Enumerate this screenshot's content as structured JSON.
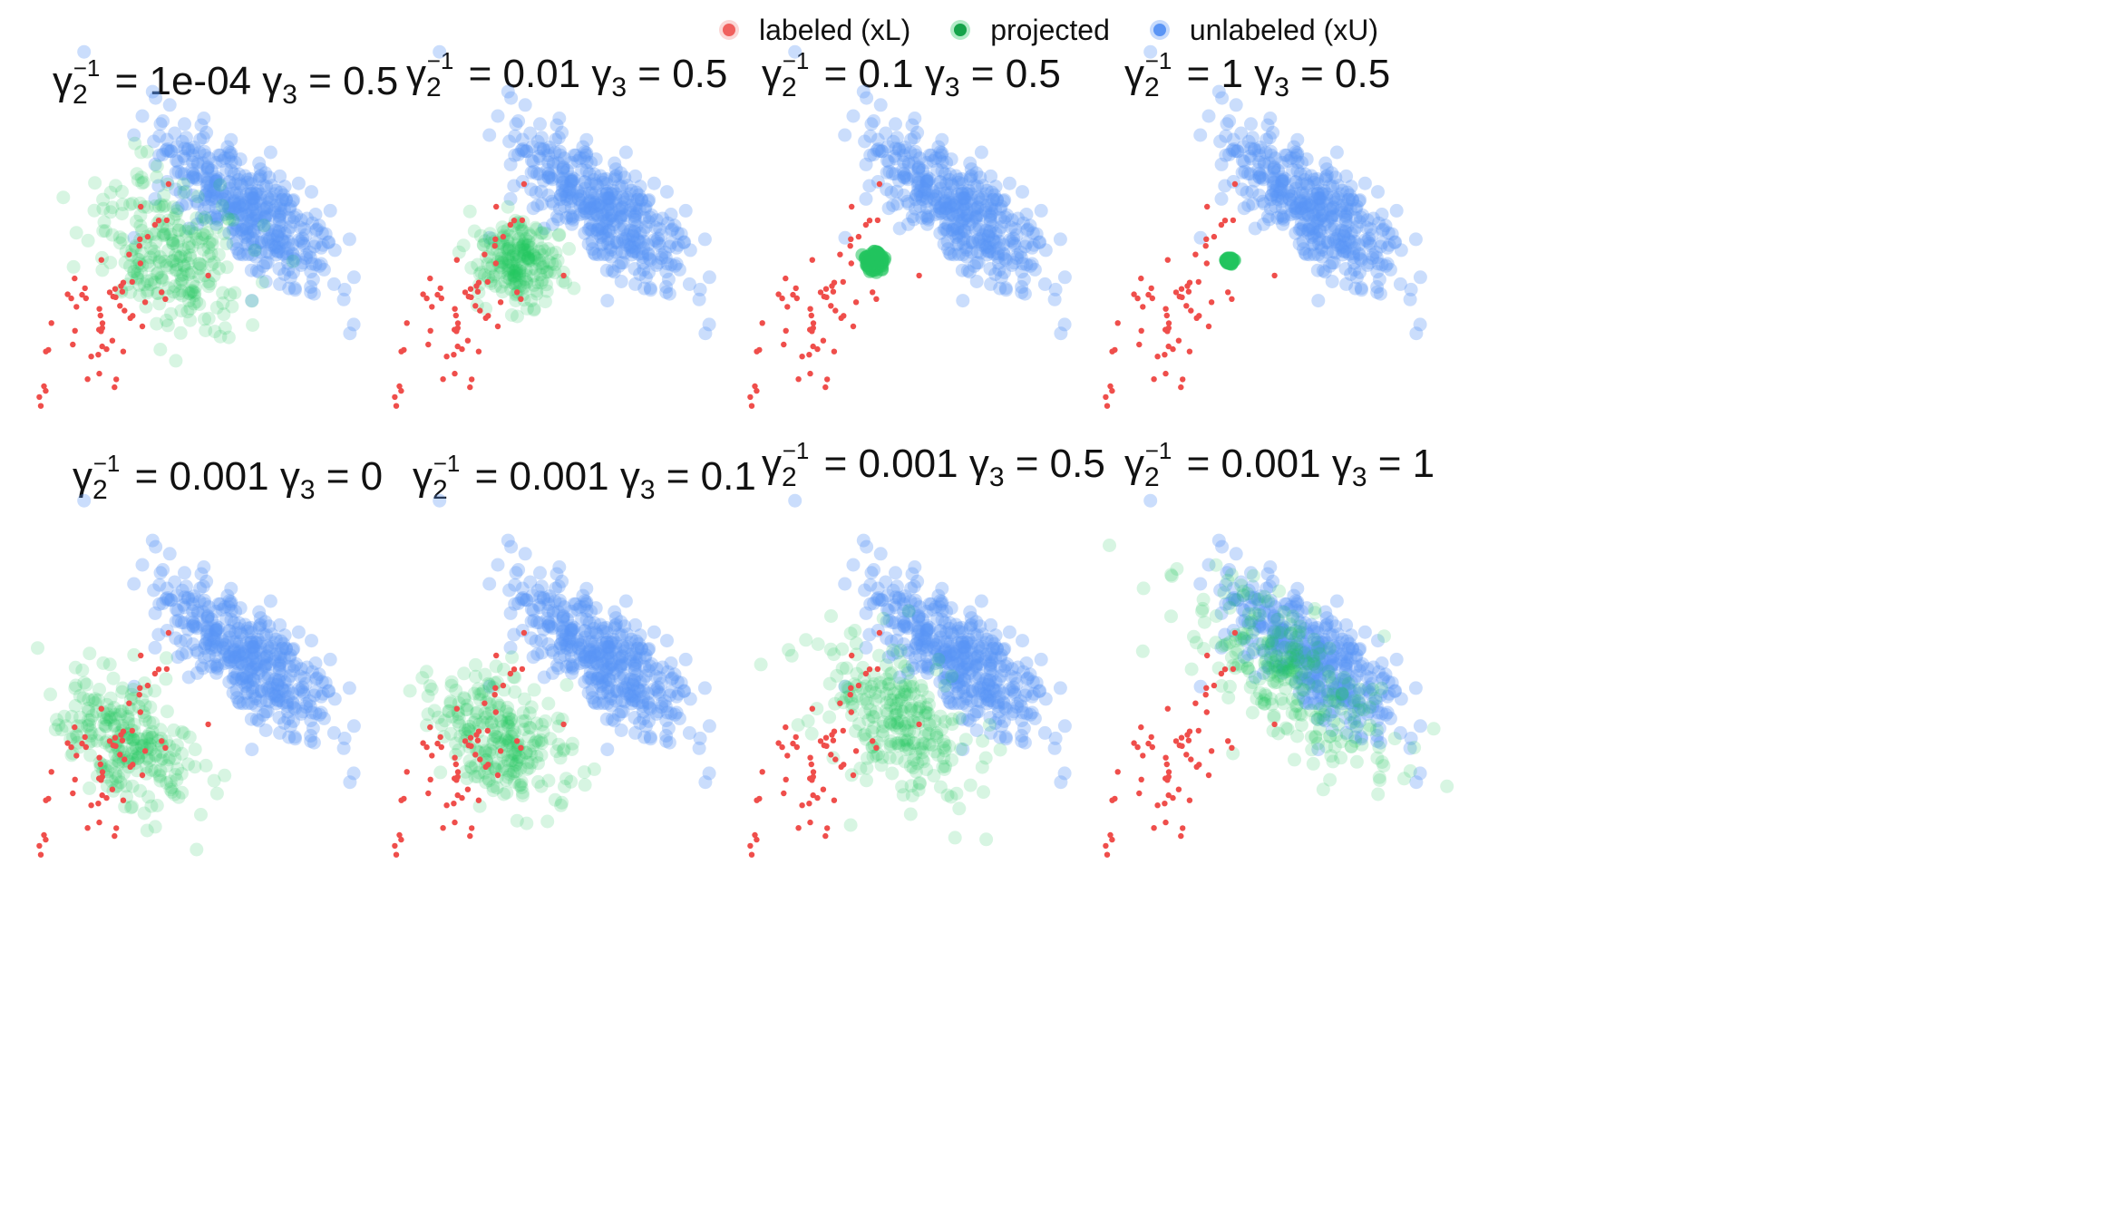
{
  "legend": [
    {
      "label": "labeled (xL)",
      "color": "#f0605d"
    },
    {
      "label": "projected",
      "color": "#22c55e"
    },
    {
      "label": "unlabeled (xU)",
      "color": "#5b95f5"
    }
  ],
  "chart_data": [
    {
      "type": "scatter",
      "row": 1,
      "col": 1,
      "gamma2_inv": "1e-04",
      "gamma3": "0.5",
      "projected_cluster": {
        "center": [
          -0.9,
          0.55
        ],
        "spread": [
          1.1,
          0.75
        ],
        "tilt_deg": -35,
        "n": 260
      }
    },
    {
      "type": "scatter",
      "row": 1,
      "col": 2,
      "gamma2_inv": "0.01",
      "gamma3": "0.5",
      "projected_cluster": {
        "center": [
          -1.0,
          0.35
        ],
        "spread": [
          0.55,
          0.45
        ],
        "tilt_deg": 0,
        "n": 220
      }
    },
    {
      "type": "scatter",
      "row": 1,
      "col": 3,
      "gamma2_inv": "0.1",
      "gamma3": "0.5",
      "projected_cluster": {
        "center": [
          -1.0,
          0.35
        ],
        "spread": [
          0.12,
          0.1
        ],
        "tilt_deg": 0,
        "n": 120
      }
    },
    {
      "type": "scatter",
      "row": 1,
      "col": 4,
      "gamma2_inv": "1",
      "gamma3": "0.5",
      "projected_cluster": {
        "center": [
          -1.0,
          0.35
        ],
        "spread": [
          0.05,
          0.04
        ],
        "tilt_deg": 0,
        "n": 60
      }
    },
    {
      "type": "scatter",
      "row": 2,
      "col": 1,
      "gamma2_inv": "0.001",
      "gamma3": "0",
      "projected_cluster": {
        "center": [
          -2.0,
          -0.35
        ],
        "spread": [
          1.0,
          0.6
        ],
        "tilt_deg": -30,
        "n": 260
      }
    },
    {
      "type": "scatter",
      "row": 2,
      "col": 2,
      "gamma2_inv": "0.001",
      "gamma3": "0.1",
      "projected_cluster": {
        "center": [
          -1.7,
          -0.25
        ],
        "spread": [
          1.0,
          0.6
        ],
        "tilt_deg": -30,
        "n": 260
      }
    },
    {
      "type": "scatter",
      "row": 2,
      "col": 3,
      "gamma2_inv": "0.001",
      "gamma3": "0.5",
      "projected_cluster": {
        "center": [
          -0.6,
          0.1
        ],
        "spread": [
          1.2,
          0.7
        ],
        "tilt_deg": -30,
        "n": 260
      }
    },
    {
      "type": "scatter",
      "row": 2,
      "col": 4,
      "gamma2_inv": "0.001",
      "gamma3": "1",
      "projected_cluster": {
        "center": [
          0.7,
          1.0
        ],
        "spread": [
          1.5,
          0.7
        ],
        "tilt_deg": -35,
        "n": 260
      }
    }
  ]
}
